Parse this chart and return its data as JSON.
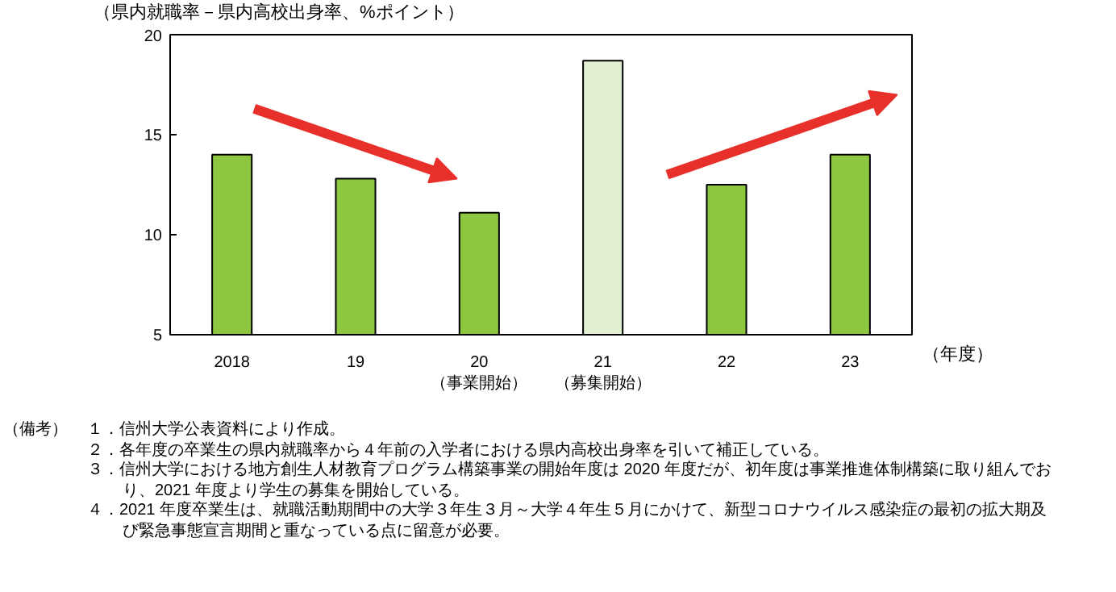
{
  "chart_data": {
    "type": "bar",
    "ylabel": "（県内就職率－県内高校出身率、%ポイント）",
    "xlabel": "（年度）",
    "categories": [
      "2018",
      "19",
      "20\n（事業開始）",
      "21\n（募集開始）",
      "22",
      "23"
    ],
    "values": [
      14.0,
      12.8,
      11.1,
      18.7,
      12.5,
      14.0
    ],
    "colors": [
      "#8dc63f",
      "#8dc63f",
      "#8dc63f",
      "#e2efd0",
      "#8dc63f",
      "#8dc63f"
    ],
    "ylim": [
      5,
      20
    ],
    "yticks": [
      5,
      10,
      15,
      20
    ],
    "grid": false,
    "annotations": [
      "（備考）",
      "１．信州大学公表資料により作成。",
      "２．各年度の卒業生の県内就職率から４年前の入学者における県内高校出身率を引いて補正している。",
      "３．信州大学における地方創生人材教育プログラム構築事業の開始年度は 2020 年度だが、初年度は事業推進体制構築に取り組んでおり、2021 年度より学生の募集を開始している。",
      "４．2021  年度卒業生は、就職活動期間中の大学３年生３月～大学４年生５月にかけて、新型コロナウイルス感染症の最初の拡大期及び緊急事態宣言期間と重なっている点に留意が必要。"
    ]
  }
}
